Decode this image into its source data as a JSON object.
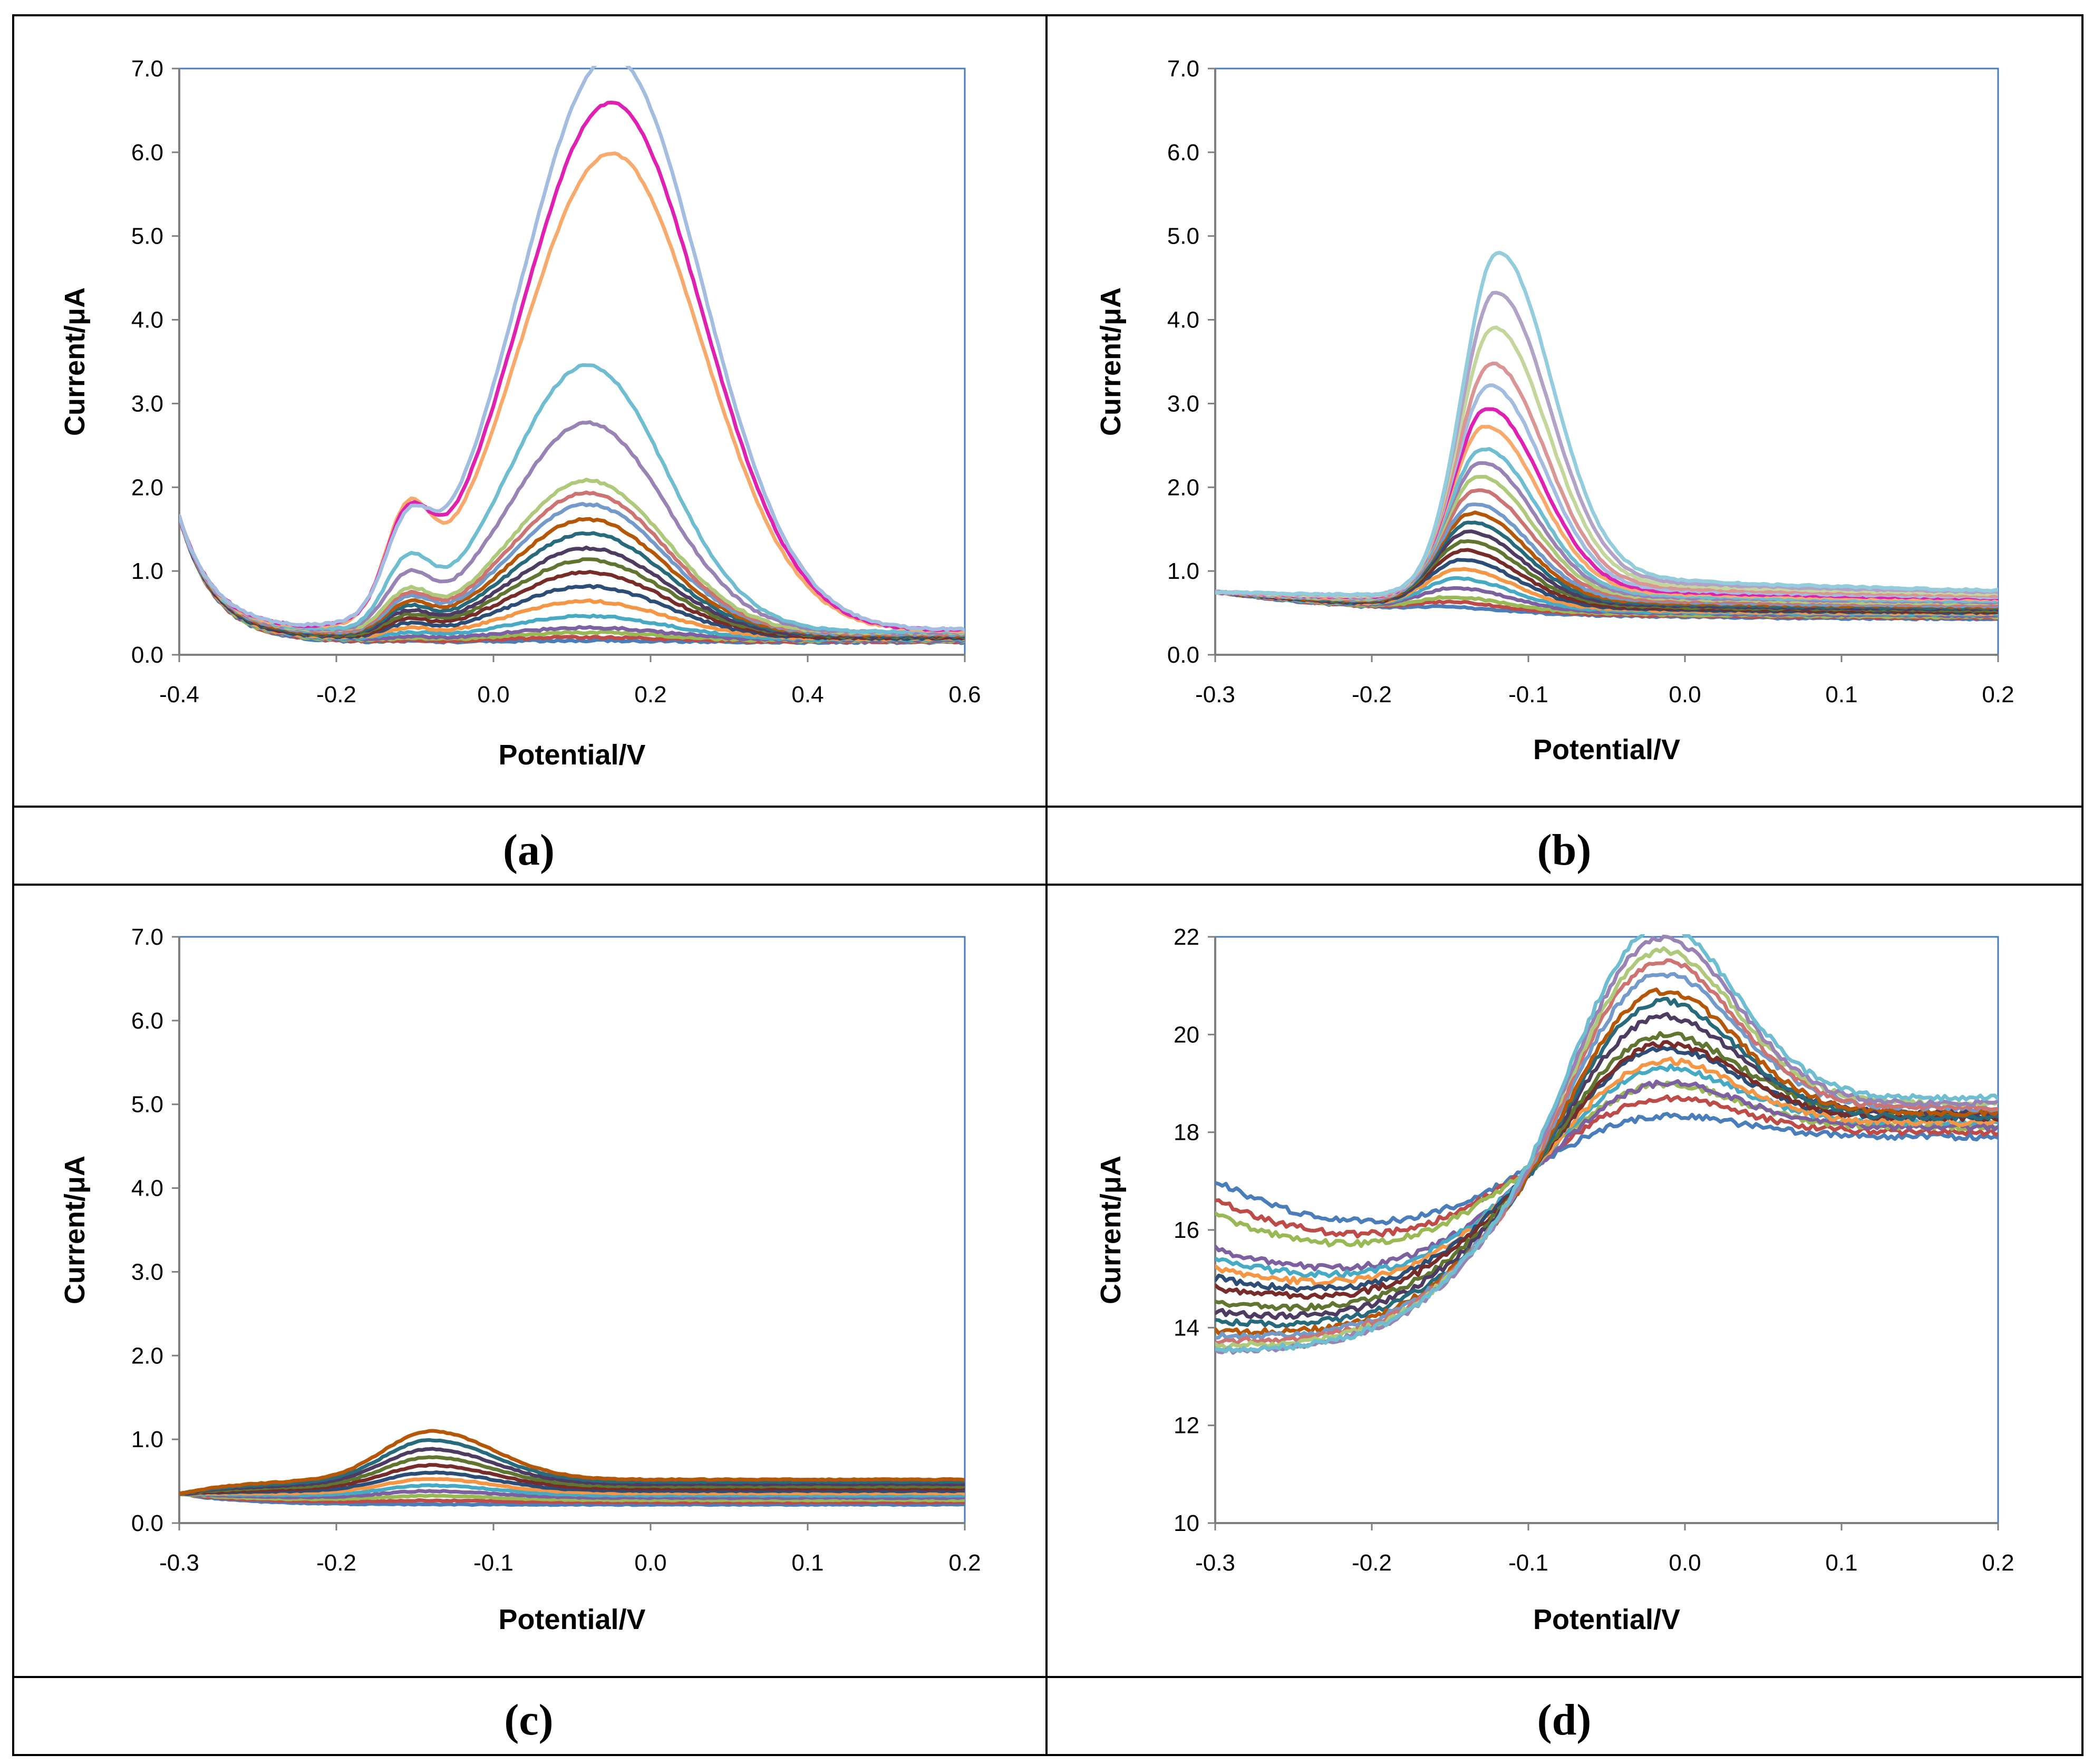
{
  "colors": {
    "palette": [
      "#4a7ebb",
      "#be4b48",
      "#98b954",
      "#7d60a0",
      "#46aac5",
      "#f59645",
      "#2c4d75",
      "#772c2a",
      "#5f7530",
      "#4d3b62",
      "#276a7c",
      "#b65708",
      "#729aca",
      "#cd7371",
      "#afc97a",
      "#9983b5",
      "#6fbdd1",
      "#f8a96c",
      "#e020b0",
      "#a3bde0",
      "#d99694",
      "#c3d69b",
      "#b3a2c7",
      "#93cddd",
      "#fac090",
      "#8fb3e0",
      "#e6b9b8",
      "#93cddf",
      "#b9cde5",
      "#d7b3b2"
    ]
  },
  "chart_data": [
    {
      "type": "line",
      "panel": "a",
      "panel_label": "(a)",
      "xlabel": "Potential/V",
      "ylabel": "Current/μA",
      "xlim": [
        -0.4,
        0.6
      ],
      "ylim": [
        0,
        7
      ],
      "x_ticks": [
        "-0.4",
        "-0.2",
        "0.0",
        "0.2",
        "0.4",
        "0.6"
      ],
      "y_ticks": [
        "0.0",
        "1.0",
        "2.0",
        "3.0",
        "4.0",
        "5.0",
        "6.0",
        "7.0"
      ],
      "grid": false,
      "series_count": 20,
      "baseline_range": [
        0.15,
        0.3
      ],
      "main_peak": {
        "center": 0.12,
        "width": 0.1,
        "heights": [
          0.02,
          0.05,
          0.1,
          0.15,
          0.28,
          0.45,
          0.62,
          0.78,
          0.92,
          1.05,
          1.22,
          1.38,
          1.55,
          1.68,
          1.82,
          2.5,
          3.18,
          3.78,
          4.45,
          4.7
        ]
      },
      "shoulder": {
        "center": -0.11,
        "width": 0.028
      },
      "secondary_peak": {
        "center": 0.15,
        "width": 0.115,
        "top_heights": [
          6.85,
          6.3,
          5.7
        ]
      },
      "start_value": 1.65
    },
    {
      "type": "line",
      "panel": "b",
      "panel_label": "(b)",
      "xlabel": "Potential/V",
      "ylabel": "Current/μA",
      "xlim": [
        -0.3,
        0.2
      ],
      "ylim": [
        0,
        7
      ],
      "x_ticks": [
        "-0.3",
        "-0.2",
        "-0.1",
        "0.0",
        "0.1",
        "0.2"
      ],
      "y_ticks": [
        "0.0",
        "1.0",
        "2.0",
        "3.0",
        "4.0",
        "5.0",
        "6.0",
        "7.0"
      ],
      "grid": false,
      "series_count": 24,
      "start_value": 0.75,
      "baseline_end_range": [
        0.42,
        0.68
      ],
      "peak_center_range": [
        -0.15,
        -0.12
      ],
      "peak_heights": [
        0.05,
        0.1,
        0.15,
        0.25,
        0.35,
        0.45,
        0.55,
        0.65,
        0.75,
        0.85,
        0.95,
        1.05,
        1.15,
        1.3,
        1.45,
        1.6,
        1.75,
        2.0,
        2.2,
        2.45,
        2.7,
        3.1,
        3.5,
        3.95
      ]
    },
    {
      "type": "line",
      "panel": "c",
      "panel_label": "(c)",
      "xlabel": "Potential/V",
      "ylabel": "Current/μA",
      "xlim": [
        -0.3,
        0.2
      ],
      "ylim": [
        0,
        7
      ],
      "x_ticks": [
        "-0.3",
        "-0.2",
        "-0.1",
        "0.0",
        "0.1",
        "0.2"
      ],
      "y_ticks": [
        "0.0",
        "1.0",
        "2.0",
        "3.0",
        "4.0",
        "5.0",
        "6.0",
        "7.0"
      ],
      "grid": false,
      "series_count": 12,
      "baseline_range": [
        0.22,
        0.52
      ],
      "peak_center": -0.14,
      "peak_heights": [
        0.0,
        0.02,
        0.05,
        0.08,
        0.12,
        0.17,
        0.22,
        0.28,
        0.35,
        0.42,
        0.5,
        0.58
      ]
    },
    {
      "type": "line",
      "panel": "d",
      "panel_label": "(d)",
      "xlabel": "Potential/V",
      "ylabel": "Current/μA",
      "xlim": [
        -0.3,
        0.2
      ],
      "ylim": [
        10,
        22
      ],
      "x_ticks": [
        "-0.3",
        "-0.2",
        "-0.1",
        "0.0",
        "0.1",
        "0.2"
      ],
      "y_ticks": [
        "10",
        "12",
        "14",
        "16",
        "18",
        "20",
        "22"
      ],
      "grid": false,
      "series_count": 17,
      "start_values": [
        17.0,
        16.6,
        16.3,
        15.6,
        15.4,
        15.2,
        15.0,
        14.8,
        14.5,
        14.3,
        14.1,
        13.9,
        13.8,
        13.7,
        13.6,
        13.5,
        13.5
      ],
      "peak_heights": [
        0.9,
        1.4,
        1.8,
        1.9,
        2.3,
        2.6,
        2.9,
        3.1,
        3.3,
        4.0,
        4.8,
        5.0,
        5.5,
        6.0,
        6.2,
        6.7,
        7.0
      ],
      "end_values": [
        17.9,
        18.0,
        18.1,
        18.1,
        18.2,
        18.2,
        18.3,
        18.3,
        18.4,
        18.4,
        18.3,
        18.4,
        18.5,
        18.5,
        18.6,
        18.6,
        18.7
      ]
    }
  ]
}
